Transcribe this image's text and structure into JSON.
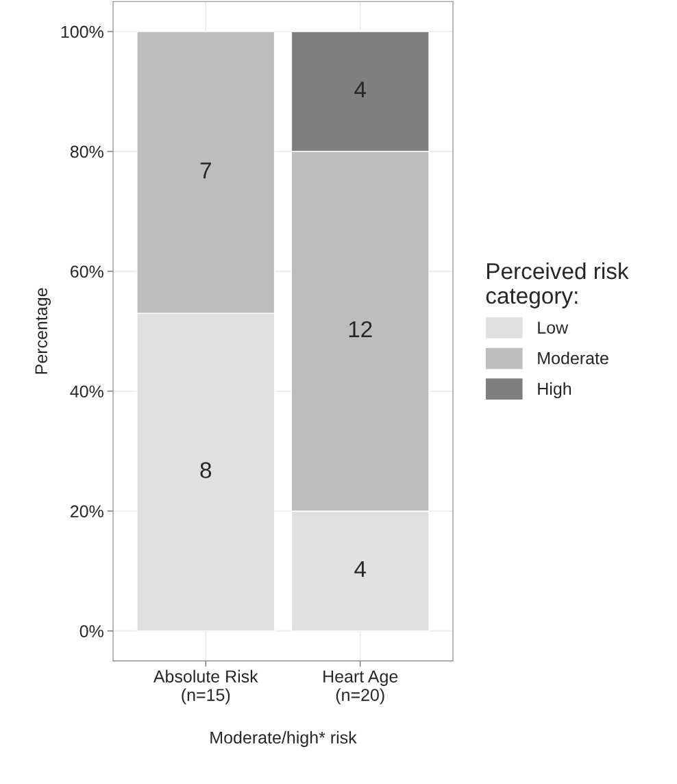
{
  "chart_data": {
    "type": "bar",
    "stacked": true,
    "categories": [
      "Absolute Risk\n(n=15)",
      "Heart Age\n(n=20)"
    ],
    "xlabel": "Moderate/high* risk",
    "ylabel": "Percentage",
    "legend_title": "Perceived risk\ncategory:",
    "series": [
      {
        "name": "Low",
        "color": "#e0e0e0",
        "values": [
          53,
          20
        ]
      },
      {
        "name": "Moderate",
        "color": "#bdbdbd",
        "values": [
          47,
          60
        ]
      },
      {
        "name": "High",
        "color": "#7f7f7f",
        "values": [
          null,
          20
        ]
      }
    ],
    "annotations": [
      "8",
      "4",
      "7",
      "12",
      "4"
    ],
    "ylim": [
      -5,
      105
    ],
    "yticks": [
      {
        "value": 0,
        "label": "0%"
      },
      {
        "value": 20,
        "label": "20%"
      },
      {
        "value": 40,
        "label": "40%"
      },
      {
        "value": 60,
        "label": "60%"
      },
      {
        "value": 80,
        "label": "80%"
      },
      {
        "value": 100,
        "label": "100%"
      }
    ],
    "grid": true,
    "legend": "right"
  }
}
